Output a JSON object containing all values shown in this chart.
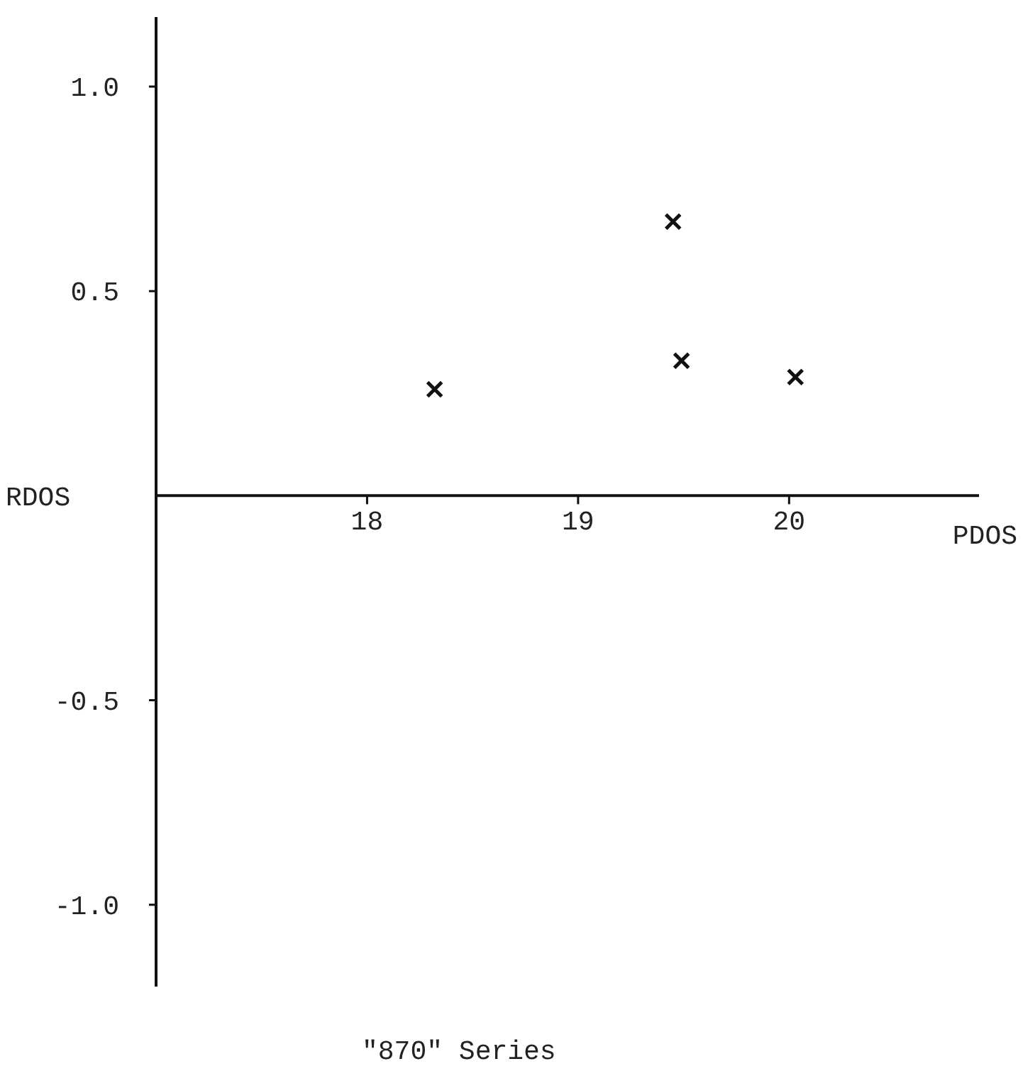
{
  "chart_data": {
    "type": "scatter",
    "xlabel": "PDOS",
    "ylabel": "RDOS",
    "x": [
      18.32,
      19.45,
      19.49,
      20.03
    ],
    "values": [
      0.26,
      0.67,
      0.33,
      0.29
    ],
    "color": "#111111",
    "marker": "cross",
    "grid": false,
    "xlim": [
      17,
      20.9
    ],
    "ylim": [
      -1.2,
      1.17
    ],
    "xticks": [
      18,
      19,
      20
    ],
    "yticks": [
      {
        "value": 1,
        "label": "1.0"
      },
      {
        "value": 0.5,
        "label": "0.5"
      },
      {
        "value": -0.5,
        "label": "-0.5"
      },
      {
        "value": -1,
        "label": "-1.0"
      }
    ],
    "annotations": [
      "\"870\" Series"
    ]
  }
}
